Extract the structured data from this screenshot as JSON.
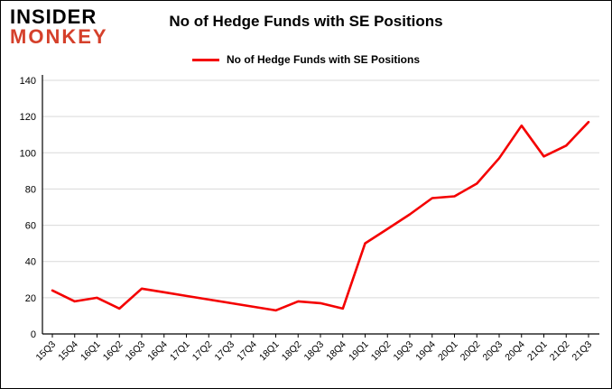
{
  "logo": {
    "line1": "INSIDER",
    "line2": "MONKEY",
    "color_primary": "#000000",
    "color_secondary": "#d5402b"
  },
  "title": "No of Hedge Funds with SE Positions",
  "legend": {
    "label": "No of Hedge Funds with SE Positions"
  },
  "chart_data": {
    "type": "line",
    "title": "No of Hedge Funds with SE Positions",
    "categories": [
      "15Q3",
      "15Q4",
      "16Q1",
      "16Q2",
      "16Q3",
      "16Q4",
      "17Q1",
      "17Q2",
      "17Q3",
      "17Q4",
      "18Q1",
      "18Q2",
      "18Q3",
      "18Q4",
      "19Q1",
      "19Q2",
      "19Q3",
      "19Q4",
      "20Q1",
      "20Q2",
      "20Q3",
      "20Q4",
      "21Q1",
      "21Q2",
      "21Q3"
    ],
    "series": [
      {
        "name": "No of Hedge Funds with SE Positions",
        "color": "#f40000",
        "values": [
          24,
          18,
          20,
          14,
          25,
          23,
          21,
          19,
          17,
          15,
          13,
          18,
          17,
          14,
          50,
          58,
          66,
          75,
          76,
          83,
          97,
          115,
          98,
          104,
          117
        ]
      }
    ],
    "xlabel": "",
    "ylabel": "",
    "ylim": [
      0,
      140
    ],
    "yticks": [
      0,
      20,
      40,
      60,
      80,
      100,
      120,
      140
    ],
    "grid": true,
    "grid_color": "#d9d9d9",
    "axis_color": "#000000",
    "legend_position": "top"
  }
}
